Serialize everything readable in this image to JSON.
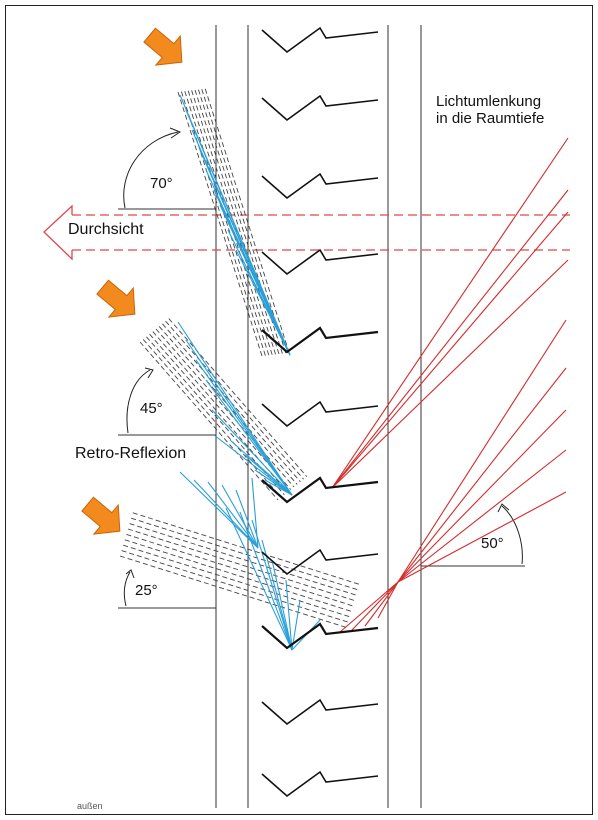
{
  "labels": {
    "durchsicht": "Durchsicht",
    "lichtumlenkung_line1": "Lichtumlenkung",
    "lichtumlenkung_line2": "in die Raumtiefe",
    "retro_reflexion": "Retro-Reflexion",
    "footer": "außen"
  },
  "angles": {
    "a70": "70°",
    "a45": "45°",
    "a25": "25°",
    "a50": "50°"
  },
  "colors": {
    "incident_ray": "#444444",
    "reflected_blue": "#2a9fd8",
    "redirected_red": "#d42a2a",
    "view_arrow": "#e0474c",
    "sun_arrow": "#f28a1e",
    "glass_line": "#333333",
    "slat": "#111111"
  },
  "icons": {
    "sun_arrow": "sun-arrow-icon",
    "view_arrow": "view-through-arrow-icon"
  }
}
